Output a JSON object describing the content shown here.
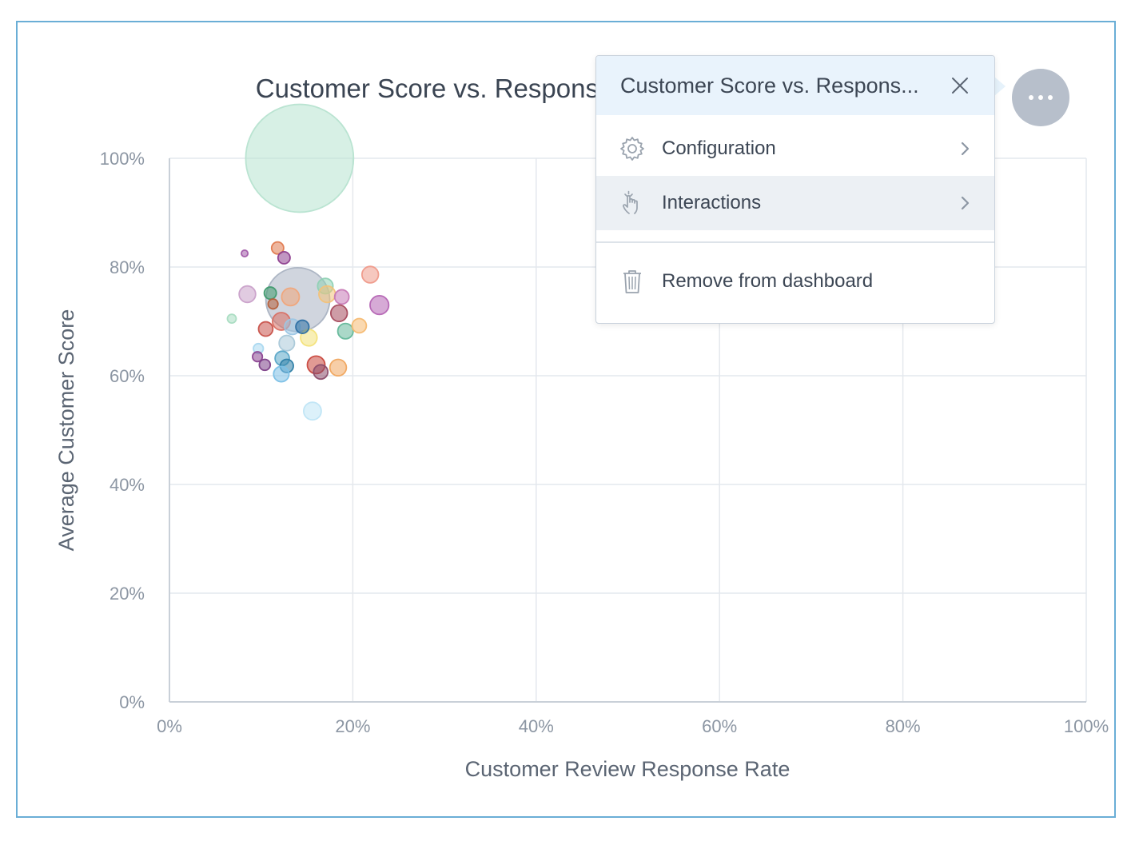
{
  "menu": {
    "title": "Customer Score vs. Respons...",
    "items": [
      {
        "label": "Configuration",
        "icon": "gear-icon",
        "has_submenu": true
      },
      {
        "label": "Interactions",
        "icon": "pointer-hand-icon",
        "has_submenu": true,
        "highlighted": true
      },
      {
        "label": "Remove from dashboard",
        "icon": "trash-icon",
        "has_submenu": false
      }
    ]
  },
  "more_button": {
    "icon": "ellipsis-icon"
  },
  "chart_data": {
    "type": "scatter",
    "variant": "bubble",
    "title": "Customer Score vs. Response Rate",
    "xlabel": "Customer Review Response Rate",
    "ylabel": "Average Customer Score",
    "xlim": [
      0,
      100
    ],
    "ylim": [
      0,
      100
    ],
    "x_ticks": [
      "0%",
      "20%",
      "40%",
      "60%",
      "80%",
      "100%"
    ],
    "y_ticks": [
      "0%",
      "20%",
      "40%",
      "60%",
      "80%",
      "100%"
    ],
    "grid": true,
    "legend": "none",
    "points": [
      {
        "x": 14.2,
        "y": 100,
        "r": 9.8,
        "color": "#b7e3d0"
      },
      {
        "x": 14.0,
        "y": 74.0,
        "r": 5.8,
        "color": "#aab3c2"
      },
      {
        "x": 8.2,
        "y": 82.5,
        "r": 0.6,
        "color": "#a15aa8"
      },
      {
        "x": 11.8,
        "y": 83.5,
        "r": 1.1,
        "color": "#e07a4f"
      },
      {
        "x": 12.5,
        "y": 81.7,
        "r": 1.1,
        "color": "#8e3f8f"
      },
      {
        "x": 21.9,
        "y": 78.6,
        "r": 1.5,
        "color": "#ef9a8a"
      },
      {
        "x": 22.9,
        "y": 73.0,
        "r": 1.7,
        "color": "#b565b4"
      },
      {
        "x": 8.5,
        "y": 75.0,
        "r": 1.5,
        "color": "#c9a0c9"
      },
      {
        "x": 6.8,
        "y": 70.5,
        "r": 0.8,
        "color": "#a8dcc1"
      },
      {
        "x": 11.0,
        "y": 75.2,
        "r": 1.1,
        "color": "#3f9a6e"
      },
      {
        "x": 11.3,
        "y": 73.2,
        "r": 0.9,
        "color": "#b5603c"
      },
      {
        "x": 13.2,
        "y": 74.5,
        "r": 1.6,
        "color": "#f0a57a"
      },
      {
        "x": 17.0,
        "y": 76.5,
        "r": 1.4,
        "color": "#8fd1b4"
      },
      {
        "x": 17.2,
        "y": 75.0,
        "r": 1.5,
        "color": "#f2c27a"
      },
      {
        "x": 18.8,
        "y": 74.5,
        "r": 1.3,
        "color": "#c77ab6"
      },
      {
        "x": 18.5,
        "y": 71.5,
        "r": 1.5,
        "color": "#a64a5c"
      },
      {
        "x": 19.2,
        "y": 68.2,
        "r": 1.4,
        "color": "#64b89a"
      },
      {
        "x": 20.7,
        "y": 69.2,
        "r": 1.3,
        "color": "#f5b971"
      },
      {
        "x": 10.5,
        "y": 68.6,
        "r": 1.3,
        "color": "#c8524a"
      },
      {
        "x": 12.2,
        "y": 70.0,
        "r": 1.6,
        "color": "#d86f63"
      },
      {
        "x": 13.4,
        "y": 69.0,
        "r": 1.4,
        "color": "#9cc6e4"
      },
      {
        "x": 15.2,
        "y": 67.0,
        "r": 1.5,
        "color": "#f3e27a"
      },
      {
        "x": 14.5,
        "y": 69.0,
        "r": 1.2,
        "color": "#2d6fa3"
      },
      {
        "x": 12.8,
        "y": 66.0,
        "r": 1.4,
        "color": "#a9c8d8"
      },
      {
        "x": 9.7,
        "y": 65.0,
        "r": 0.9,
        "color": "#a9d8f0"
      },
      {
        "x": 9.6,
        "y": 63.5,
        "r": 0.9,
        "color": "#8c4592"
      },
      {
        "x": 10.4,
        "y": 62.0,
        "r": 1.0,
        "color": "#7c3f88"
      },
      {
        "x": 12.3,
        "y": 63.2,
        "r": 1.3,
        "color": "#5aa7c8"
      },
      {
        "x": 12.8,
        "y": 61.8,
        "r": 1.2,
        "color": "#2f7fa8"
      },
      {
        "x": 12.2,
        "y": 60.3,
        "r": 1.4,
        "color": "#7bc0e6"
      },
      {
        "x": 16.0,
        "y": 62.0,
        "r": 1.6,
        "color": "#c9473d"
      },
      {
        "x": 16.5,
        "y": 60.7,
        "r": 1.3,
        "color": "#8c4d6b"
      },
      {
        "x": 18.4,
        "y": 61.5,
        "r": 1.5,
        "color": "#f0a65f"
      },
      {
        "x": 15.6,
        "y": 53.5,
        "r": 1.6,
        "color": "#bfe5f5"
      }
    ]
  }
}
